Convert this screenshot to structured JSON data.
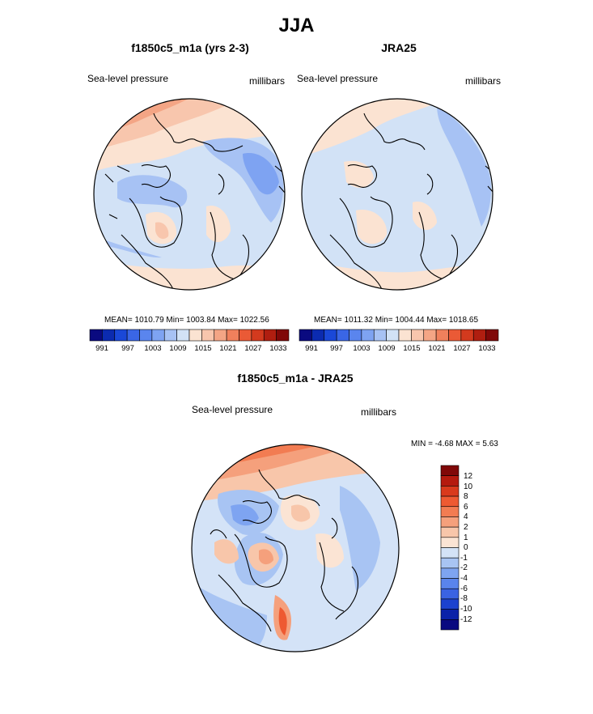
{
  "title": "JJA",
  "panels": [
    {
      "title": "f1850c5_m1a (yrs 2-3)",
      "left_label": "Sea-level pressure",
      "right_label": "millibars",
      "stats": {
        "mean": "1010.79",
        "min": "1003.84",
        "max": "1022.56"
      },
      "stats_text": "MEAN= 1010.79  Min= 1003.84  Max= 1022.56"
    },
    {
      "title": "JRA25",
      "left_label": "Sea-level pressure",
      "right_label": "millibars",
      "stats": {
        "mean": "1011.32",
        "min": "1004.44",
        "max": "1018.65"
      },
      "stats_text": "MEAN= 1011.32  Min= 1004.44  Max= 1018.65"
    },
    {
      "title": "f1850c5_m1a - JRA25",
      "left_label": "Sea-level pressure",
      "right_label": "millibars",
      "stats": {
        "min": "-4.68",
        "max": "5.63"
      },
      "stats_text": "MIN =  -4.68 MAX =   5.63"
    }
  ],
  "colorbars": {
    "abs_ticks": [
      "991",
      "997",
      "1003",
      "1009",
      "1015",
      "1021",
      "1027",
      "1033"
    ],
    "abs_colors": [
      "#0a0a80",
      "#0b2bb0",
      "#1a48d8",
      "#3a66e6",
      "#5a85ee",
      "#7ea3f2",
      "#a7c2f4",
      "#d2e2f6",
      "#fbe3d2",
      "#f8c6ad",
      "#f4a585",
      "#f0805c",
      "#ea5a36",
      "#d33a1e",
      "#b01e10",
      "#800808"
    ],
    "diff_ticks": [
      "12",
      "10",
      "8",
      "6",
      "4",
      "2",
      "1",
      "0",
      "-1",
      "-2",
      "-4",
      "-6",
      "-8",
      "-10",
      "-12"
    ],
    "diff_colors": [
      "#800808",
      "#b51a0e",
      "#d93a1c",
      "#ee5a32",
      "#f27c52",
      "#f5a07c",
      "#f8c6aa",
      "#fbe4d4",
      "#d4e3f7",
      "#a8c4f3",
      "#7ea4f1",
      "#5a84ec",
      "#3a63e2",
      "#1c42cf",
      "#0b22a8",
      "#0a0a80"
    ]
  },
  "chart_data": [
    {
      "type": "heatmap",
      "title": "f1850c5_m1a (yrs 2-3)",
      "variable": "Sea-level pressure",
      "units": "millibars",
      "season": "JJA",
      "projection": "north polar stereographic",
      "stats": {
        "mean": 1010.79,
        "min": 1003.84,
        "max": 1022.56
      },
      "colorbar_ticks": [
        991,
        997,
        1003,
        1009,
        1015,
        1021,
        1027,
        1033
      ],
      "colorbar_range": [
        991,
        1033
      ]
    },
    {
      "type": "heatmap",
      "title": "JRA25",
      "variable": "Sea-level pressure",
      "units": "millibars",
      "season": "JJA",
      "projection": "north polar stereographic",
      "stats": {
        "mean": 1011.32,
        "min": 1004.44,
        "max": 1018.65
      },
      "colorbar_ticks": [
        991,
        997,
        1003,
        1009,
        1015,
        1021,
        1027,
        1033
      ],
      "colorbar_range": [
        991,
        1033
      ]
    },
    {
      "type": "heatmap",
      "title": "f1850c5_m1a - JRA25",
      "variable": "Sea-level pressure",
      "units": "millibars",
      "season": "JJA",
      "projection": "north polar stereographic",
      "stats": {
        "min": -4.68,
        "max": 5.63
      },
      "colorbar_ticks": [
        12,
        10,
        8,
        6,
        4,
        2,
        1,
        0,
        -1,
        -2,
        -4,
        -6,
        -8,
        -10,
        -12
      ]
    }
  ]
}
